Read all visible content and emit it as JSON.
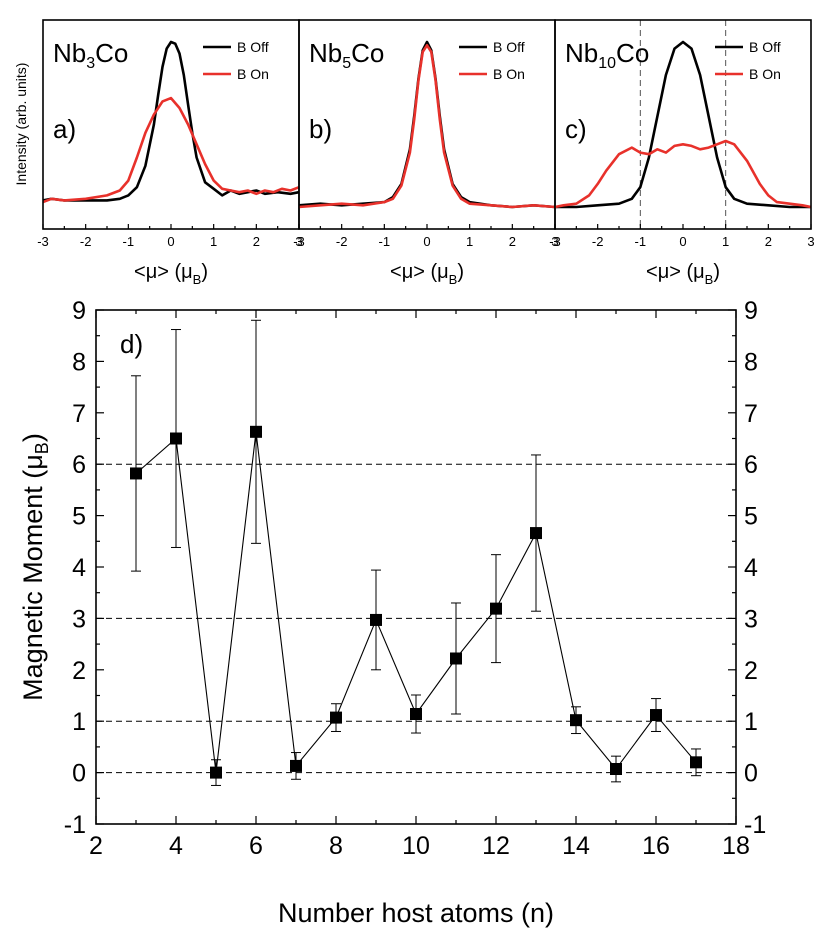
{
  "chart_data": [
    {
      "type": "line",
      "panel": "a",
      "title_main": "Nb",
      "title_sub": "3",
      "title_end": "Co",
      "letter": "a)",
      "xlim": [
        -3,
        3
      ],
      "xticks": [
        "-3",
        "-2",
        "-1",
        "0",
        "1",
        "2",
        "3"
      ],
      "xlabel_main": "<μ> (μ",
      "xlabel_sub": "B",
      "xlabel_end": ")",
      "ylabel": "Intensity (arb. units)",
      "legend": [
        "B Off",
        "B  On"
      ],
      "series": [
        {
          "name": "B Off",
          "color": "#000000",
          "x": [
            -3,
            -2.8,
            -2.5,
            -2,
            -1.5,
            -1.2,
            -1,
            -0.8,
            -0.6,
            -0.4,
            -0.3,
            -0.2,
            -0.1,
            0,
            0.1,
            0.2,
            0.3,
            0.4,
            0.5,
            0.6,
            0.8,
            1,
            1.2,
            1.4,
            1.6,
            1.8,
            2,
            2.2,
            2.5,
            2.8,
            3
          ],
          "y": [
            0.04,
            0.05,
            0.04,
            0.04,
            0.04,
            0.05,
            0.07,
            0.12,
            0.25,
            0.5,
            0.68,
            0.85,
            0.96,
            1.0,
            0.99,
            0.93,
            0.8,
            0.62,
            0.45,
            0.3,
            0.15,
            0.11,
            0.07,
            0.1,
            0.08,
            0.09,
            0.1,
            0.08,
            0.09,
            0.08,
            0.09
          ]
        },
        {
          "name": "B  On",
          "color": "#e8312b",
          "x": [
            -3,
            -2.8,
            -2.5,
            -2,
            -1.5,
            -1.2,
            -1,
            -0.8,
            -0.6,
            -0.4,
            -0.2,
            0,
            0.2,
            0.4,
            0.6,
            0.8,
            1,
            1.2,
            1.4,
            1.6,
            1.8,
            2,
            2.2,
            2.4,
            2.6,
            2.8,
            3
          ],
          "y": [
            0.03,
            0.05,
            0.04,
            0.05,
            0.07,
            0.1,
            0.16,
            0.3,
            0.45,
            0.56,
            0.64,
            0.66,
            0.6,
            0.5,
            0.38,
            0.26,
            0.16,
            0.11,
            0.1,
            0.09,
            0.1,
            0.08,
            0.1,
            0.09,
            0.11,
            0.1,
            0.12
          ]
        }
      ]
    },
    {
      "type": "line",
      "panel": "b",
      "title_main": "Nb",
      "title_sub": "5",
      "title_end": "Co",
      "letter": "b)",
      "xlim": [
        -3,
        3
      ],
      "xticks": [
        "-3",
        "-2",
        "-1",
        "0",
        "1",
        "2",
        "3"
      ],
      "xlabel_main": "<μ> (μ",
      "xlabel_sub": "B",
      "xlabel_end": ")",
      "legend": [
        "B Off",
        "B  On"
      ],
      "series": [
        {
          "name": "B Off",
          "color": "#000000",
          "x": [
            -3,
            -2.5,
            -2,
            -1.5,
            -1,
            -0.8,
            -0.6,
            -0.4,
            -0.3,
            -0.2,
            -0.1,
            0,
            0.1,
            0.2,
            0.3,
            0.4,
            0.6,
            0.8,
            1,
            1.5,
            2,
            2.5,
            3
          ],
          "y": [
            0.01,
            0.02,
            0.01,
            0.02,
            0.03,
            0.06,
            0.14,
            0.35,
            0.55,
            0.78,
            0.95,
            1.0,
            0.95,
            0.78,
            0.55,
            0.35,
            0.14,
            0.06,
            0.03,
            0.01,
            0.0,
            0.01,
            0.0
          ]
        },
        {
          "name": "B  On",
          "color": "#e8312b",
          "x": [
            -3,
            -2.5,
            -2,
            -1.5,
            -1,
            -0.8,
            -0.6,
            -0.4,
            -0.3,
            -0.2,
            -0.1,
            0,
            0.1,
            0.2,
            0.3,
            0.4,
            0.6,
            0.8,
            1,
            1.5,
            2,
            2.5,
            3
          ],
          "y": [
            0.0,
            0.01,
            0.02,
            0.01,
            0.03,
            0.05,
            0.13,
            0.33,
            0.53,
            0.77,
            0.94,
            0.98,
            0.94,
            0.77,
            0.53,
            0.33,
            0.13,
            0.05,
            0.02,
            0.01,
            0.0,
            0.01,
            0.0
          ]
        }
      ]
    },
    {
      "type": "line",
      "panel": "c",
      "title_main": "Nb",
      "title_sub": "10",
      "title_end": "Co",
      "letter": "c)",
      "xlim": [
        -3,
        3
      ],
      "xticks": [
        "-3",
        "-2",
        "-1",
        "0",
        "1",
        "2",
        "3"
      ],
      "xlabel_main": "<μ> (μ",
      "xlabel_sub": "B",
      "xlabel_end": ")",
      "vlines": [
        -1,
        1
      ],
      "legend": [
        "B Off",
        "B  On"
      ],
      "series": [
        {
          "name": "B Off",
          "color": "#000000",
          "x": [
            -3,
            -2.5,
            -2,
            -1.5,
            -1.2,
            -1,
            -0.8,
            -0.6,
            -0.4,
            -0.2,
            0,
            0.2,
            0.4,
            0.6,
            0.8,
            1,
            1.2,
            1.5,
            2,
            2.5,
            3
          ],
          "y": [
            0.0,
            0.0,
            0.01,
            0.02,
            0.05,
            0.12,
            0.3,
            0.55,
            0.8,
            0.96,
            1.0,
            0.96,
            0.8,
            0.55,
            0.3,
            0.12,
            0.05,
            0.02,
            0.01,
            0.0,
            0.0
          ]
        },
        {
          "name": "B  On",
          "color": "#e8312b",
          "x": [
            -3,
            -2.8,
            -2.5,
            -2.2,
            -2,
            -1.8,
            -1.5,
            -1.2,
            -1,
            -0.8,
            -0.6,
            -0.4,
            -0.2,
            0,
            0.2,
            0.4,
            0.6,
            0.8,
            1,
            1.2,
            1.5,
            1.8,
            2,
            2.2,
            2.5,
            2.8,
            3
          ],
          "y": [
            0.0,
            0.01,
            0.02,
            0.07,
            0.14,
            0.22,
            0.32,
            0.36,
            0.33,
            0.32,
            0.35,
            0.33,
            0.37,
            0.38,
            0.37,
            0.35,
            0.36,
            0.38,
            0.4,
            0.38,
            0.28,
            0.14,
            0.07,
            0.03,
            0.02,
            0.01,
            0.0
          ]
        }
      ]
    },
    {
      "type": "scatter",
      "panel": "d",
      "letter": "d)",
      "xlim": [
        2,
        18
      ],
      "ylim": [
        -1,
        9
      ],
      "xticks": [
        "2",
        "4",
        "6",
        "8",
        "10",
        "12",
        "14",
        "16",
        "18"
      ],
      "yticks": [
        "-1",
        "0",
        "1",
        "2",
        "3",
        "4",
        "5",
        "6",
        "7",
        "8",
        "9"
      ],
      "xlabel": "Number host atoms (n)",
      "ylabel_main": "Magnetic Moment (μ",
      "ylabel_sub": "B",
      "ylabel_end": ")",
      "hlines": [
        0,
        1,
        3,
        6
      ],
      "x": [
        3,
        4,
        5,
        6,
        7,
        8,
        9,
        10,
        11,
        12,
        13,
        14,
        15,
        16,
        17
      ],
      "y": [
        5.82,
        6.5,
        0.0,
        6.63,
        0.13,
        1.07,
        2.97,
        1.14,
        2.22,
        3.19,
        4.66,
        1.02,
        0.07,
        1.12,
        0.2
      ],
      "yerr": [
        1.9,
        2.12,
        0.25,
        2.17,
        0.26,
        0.27,
        0.97,
        0.37,
        1.08,
        1.05,
        1.52,
        0.26,
        0.25,
        0.32,
        0.26
      ]
    }
  ]
}
